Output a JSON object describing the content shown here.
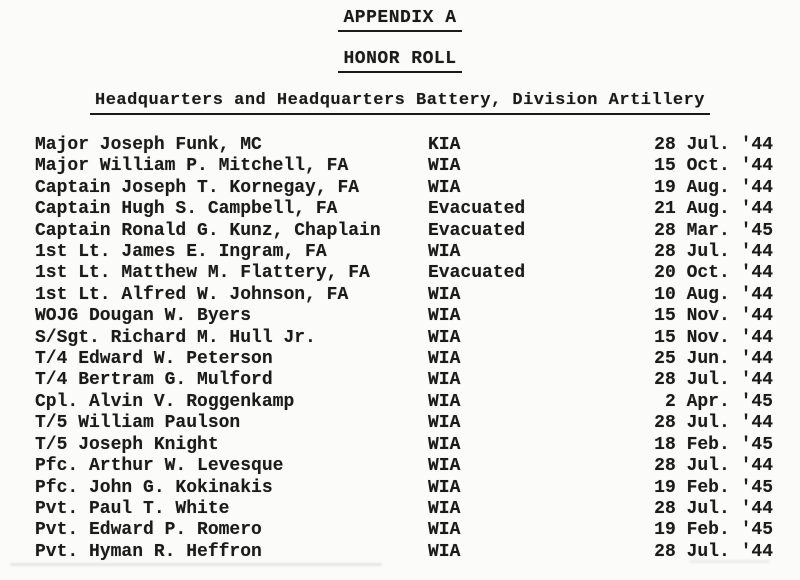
{
  "document": {
    "appendix_title": "APPENDIX A",
    "section_title": "HONOR ROLL",
    "unit_title": "Headquarters and Headquarters Battery, Division Artillery"
  },
  "roster": {
    "rows": [
      {
        "name": "Major Joseph Funk, MC",
        "status": "KIA",
        "date": "28 Jul. '44"
      },
      {
        "name": "Major William P. Mitchell, FA",
        "status": "WIA",
        "date": "15 Oct. '44"
      },
      {
        "name": "Captain Joseph T. Kornegay, FA",
        "status": "WIA",
        "date": "19 Aug. '44"
      },
      {
        "name": "Captain Hugh S. Campbell, FA",
        "status": "Evacuated",
        "date": "21 Aug. '44"
      },
      {
        "name": "Captain Ronald G. Kunz, Chaplain",
        "status": "Evacuated",
        "date": "28 Mar. '45"
      },
      {
        "name": "1st Lt. James E. Ingram, FA",
        "status": "WIA",
        "date": "28 Jul. '44"
      },
      {
        "name": "1st Lt. Matthew M. Flattery, FA",
        "status": "Evacuated",
        "date": "20 Oct. '44"
      },
      {
        "name": "1st Lt. Alfred W. Johnson, FA",
        "status": "WIA",
        "date": "10 Aug. '44"
      },
      {
        "name": "WOJG Dougan W. Byers",
        "status": "WIA",
        "date": "15 Nov. '44"
      },
      {
        "name": "S/Sgt. Richard M. Hull Jr.",
        "status": "WIA",
        "date": "15 Nov. '44"
      },
      {
        "name": "T/4 Edward W. Peterson",
        "status": "WIA",
        "date": "25 Jun. '44"
      },
      {
        "name": "T/4 Bertram G. Mulford",
        "status": "WIA",
        "date": "28 Jul. '44"
      },
      {
        "name": "Cpl. Alvin V. Roggenkamp",
        "status": "WIA",
        "date": "2 Apr. '45"
      },
      {
        "name": "T/5 William Paulson",
        "status": "WIA",
        "date": "28 Jul. '44"
      },
      {
        "name": "T/5 Joseph Knight",
        "status": "WIA",
        "date": "18 Feb. '45"
      },
      {
        "name": "Pfc. Arthur W. Levesque",
        "status": "WIA",
        "date": "28 Jul. '44"
      },
      {
        "name": "Pfc. John G. Kokinakis",
        "status": "WIA",
        "date": "19 Feb. '45"
      },
      {
        "name": "Pvt. Paul T. White",
        "status": "WIA",
        "date": "28 Jul. '44"
      },
      {
        "name": "Pvt. Edward P. Romero",
        "status": "WIA",
        "date": "19 Feb. '45"
      },
      {
        "name": "Pvt. Hyman R. Heffron",
        "status": "WIA",
        "date": "28 Jul. '44"
      }
    ]
  },
  "colors": {
    "ink": "#1b1b1b",
    "paper": "#fbfbfa"
  }
}
